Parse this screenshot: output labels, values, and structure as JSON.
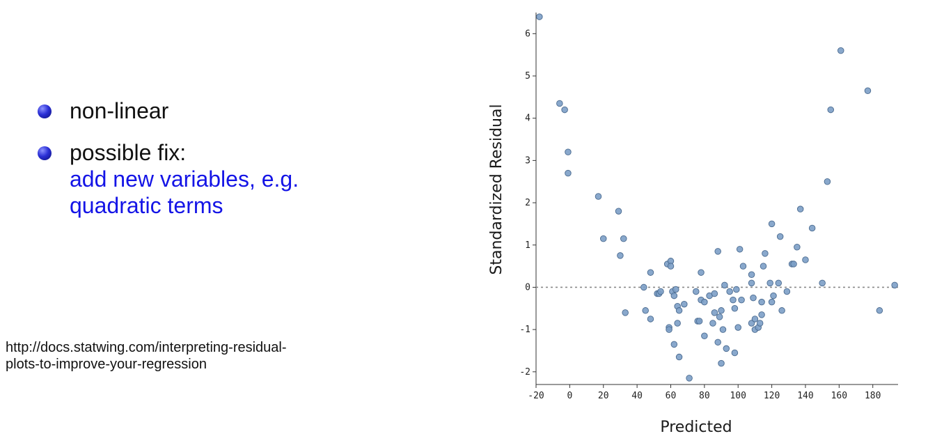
{
  "bullets": {
    "items": [
      {
        "text": "non-linear",
        "sub": []
      },
      {
        "text": "possible fix:",
        "sub": [
          "add new variables, e.g.",
          "quadratic terms"
        ]
      }
    ],
    "sub_color": "#1414e6"
  },
  "source_link": {
    "line1": "http://docs.statwing.com/interpreting-residual-",
    "line2": "plots-to-improve-your-regression"
  },
  "chart_data": {
    "type": "scatter",
    "xlabel": "Predicted",
    "ylabel": "Standardized Residual",
    "xlim": [
      -20,
      195
    ],
    "ylim": [
      -2.3,
      6.5
    ],
    "xticks": [
      -20,
      0,
      20,
      40,
      60,
      80,
      100,
      120,
      140,
      160,
      180
    ],
    "yticks": [
      -2,
      -1,
      0,
      1,
      2,
      3,
      4,
      5,
      6
    ],
    "reference_line": {
      "y": 0,
      "style": "dotted"
    },
    "point_color": "#7c9fc6",
    "x": [
      -18,
      -6,
      -3,
      -1,
      -1,
      17,
      20,
      29,
      30,
      32,
      33,
      44,
      45,
      48,
      48,
      52,
      53,
      54,
      58,
      59,
      59,
      60,
      60,
      61,
      62,
      62,
      63,
      64,
      64,
      65,
      65,
      68,
      71,
      75,
      76,
      77,
      78,
      78,
      80,
      80,
      83,
      85,
      86,
      86,
      88,
      88,
      89,
      90,
      90,
      91,
      92,
      93,
      95,
      97,
      98,
      98,
      99,
      100,
      101,
      102,
      103,
      108,
      108,
      108,
      109,
      110,
      110,
      112,
      113,
      114,
      114,
      115,
      116,
      119,
      120,
      120,
      121,
      124,
      125,
      126,
      129,
      132,
      133,
      135,
      137,
      140,
      144,
      150,
      153,
      155,
      161,
      177,
      184,
      193
    ],
    "y": [
      6.4,
      4.35,
      4.2,
      3.2,
      2.7,
      2.15,
      1.15,
      1.8,
      0.75,
      1.15,
      -0.6,
      0.0,
      -0.55,
      0.35,
      -0.75,
      -0.15,
      -0.15,
      -0.1,
      0.55,
      -0.95,
      -1.0,
      0.62,
      0.5,
      -0.1,
      -0.2,
      -1.35,
      -0.05,
      -0.45,
      -0.85,
      -0.55,
      -1.65,
      -0.4,
      -2.15,
      -0.1,
      -0.8,
      -0.8,
      0.35,
      -0.3,
      -1.15,
      -0.35,
      -0.2,
      -0.85,
      -0.6,
      -0.15,
      0.85,
      -1.3,
      -0.7,
      -1.8,
      -0.55,
      -1.0,
      0.05,
      -1.45,
      -0.1,
      -0.3,
      -1.55,
      -0.5,
      -0.05,
      -0.95,
      0.9,
      -0.3,
      0.5,
      0.3,
      -0.85,
      0.1,
      -0.25,
      -0.75,
      -1.0,
      -0.95,
      -0.85,
      -0.65,
      -0.35,
      0.5,
      0.8,
      0.1,
      1.5,
      -0.35,
      -0.2,
      0.1,
      1.2,
      -0.55,
      -0.1,
      0.55,
      0.55,
      0.95,
      1.85,
      0.65,
      1.4,
      0.1,
      2.5,
      4.2,
      5.6,
      4.65,
      -0.55,
      0.05
    ]
  }
}
